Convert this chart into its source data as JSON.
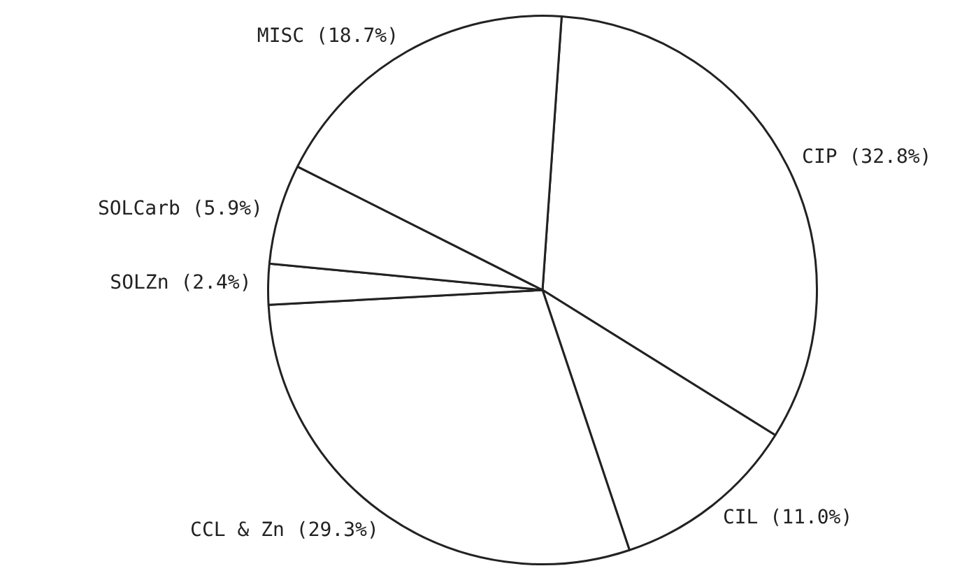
{
  "chart_data": {
    "type": "pie",
    "categories": [
      "CIP",
      "CIL",
      "CCL & Zn",
      "SOLZn",
      "SOLCarb",
      "MISC"
    ],
    "values": [
      32.8,
      11.0,
      29.3,
      2.4,
      5.9,
      18.7
    ],
    "value_labels": [
      "(32.8%)",
      "(11.0%)",
      "(29.3%)",
      "(2.4%)",
      "(5.9%)",
      "(18.7%)"
    ],
    "colors": [
      "#ffffff",
      "#ffffff",
      "#ffffff",
      "#ffffff",
      "#ffffff",
      "#ffffff"
    ],
    "legend": false
  }
}
